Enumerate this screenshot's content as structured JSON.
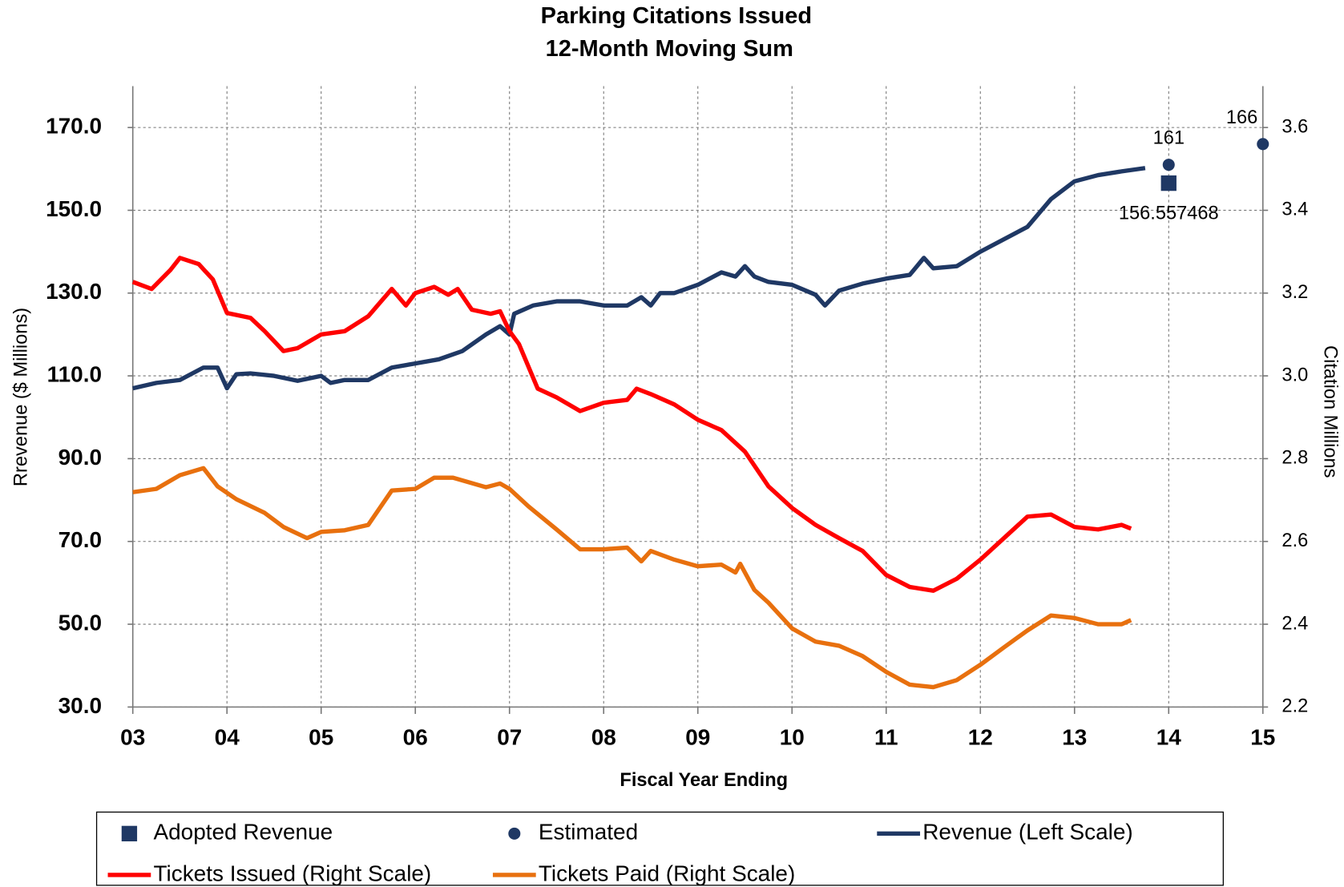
{
  "chart_data": {
    "type": "line",
    "title": "Parking Citations Issued",
    "subtitle": "12-Month Moving Sum",
    "x_label": "Fiscal Year Ending",
    "y_label": "Rrevenue ($ Millions)",
    "y2_label": "Citation Millions",
    "xlim": [
      3,
      15
    ],
    "xticks": [
      {
        "value": 3,
        "label": "03"
      },
      {
        "value": 4,
        "label": "04"
      },
      {
        "value": 5,
        "label": "05"
      },
      {
        "value": 6,
        "label": "06"
      },
      {
        "value": 7,
        "label": "07"
      },
      {
        "value": 8,
        "label": "08"
      },
      {
        "value": 9,
        "label": "09"
      },
      10,
      11,
      12,
      13,
      14,
      15
    ],
    "ylim": [
      30,
      180
    ],
    "yticks": [
      {
        "value": 30,
        "label": "30.0"
      },
      {
        "value": 50,
        "label": "50.0"
      },
      {
        "value": 70,
        "label": "70.0"
      },
      {
        "value": 90,
        "label": "90.0"
      },
      {
        "value": 110,
        "label": "110.0"
      },
      {
        "value": 130,
        "label": "130.0"
      },
      {
        "value": 150,
        "label": "150.0"
      },
      {
        "value": 170,
        "label": "170.0"
      }
    ],
    "y2lim": [
      2.2,
      3.7
    ],
    "y2ticks": [
      2.2,
      2.4,
      2.6,
      2.8,
      {
        "value": 3,
        "label": "3.0"
      },
      3.2,
      3.4,
      3.6
    ],
    "grid": true,
    "legend": "bottom",
    "series": [
      {
        "name": "Adopted Revenue",
        "style": "square",
        "color": "#1f3864",
        "labels": true,
        "x": [
          14
        ],
        "values": [
          156.557468
        ]
      },
      {
        "name": "Estimated",
        "style": "circle",
        "color": "#1f3864",
        "labels": true,
        "x": [
          14,
          15
        ],
        "values": [
          161,
          166
        ]
      },
      {
        "name": "Revenue (Left Scale)",
        "style": "line",
        "color": "#1f3864",
        "x": [
          3,
          3.25,
          3.5,
          3.75,
          3.9,
          4,
          4.1,
          4.25,
          4.5,
          4.75,
          5,
          5.1,
          5.25,
          5.5,
          5.75,
          6,
          6.25,
          6.5,
          6.75,
          6.9,
          7,
          7.05,
          7.25,
          7.5,
          7.75,
          8,
          8.25,
          8.4,
          8.5,
          8.6,
          8.75,
          9,
          9.25,
          9.4,
          9.5,
          9.6,
          9.75,
          10,
          10.25,
          10.35,
          10.5,
          10.75,
          11,
          11.25,
          11.4,
          11.5,
          11.75,
          12,
          12.25,
          12.5,
          12.75,
          13,
          13.25,
          13.5,
          13.75
        ],
        "values": [
          107,
          108.3,
          109,
          112,
          112,
          107,
          110.4,
          110.6,
          110,
          108.8,
          110,
          108.3,
          109,
          109,
          112,
          113,
          114,
          116,
          120,
          122,
          120,
          125,
          127,
          128,
          128,
          127,
          127,
          129,
          127,
          130,
          130,
          132,
          135,
          134,
          136.5,
          134,
          132.7,
          132,
          129.6,
          127,
          130.6,
          132.3,
          133.5,
          134.4,
          138.5,
          136,
          136.5,
          140,
          143,
          146,
          152.7,
          157,
          158.5,
          159.4,
          160.2
        ]
      },
      {
        "name": "Tickets Issued (Right Scale)",
        "style": "line",
        "color": "#ff0000",
        "axis": "y2",
        "x": [
          3,
          3.2,
          3.4,
          3.5,
          3.7,
          3.85,
          4,
          4.25,
          4.4,
          4.6,
          4.75,
          5,
          5.25,
          5.5,
          5.75,
          5.9,
          6,
          6.2,
          6.35,
          6.45,
          6.6,
          6.8,
          6.9,
          7,
          7.1,
          7.3,
          7.5,
          7.75,
          8,
          8.25,
          8.35,
          8.5,
          8.75,
          9,
          9.25,
          9.5,
          9.75,
          10,
          10.25,
          10.5,
          10.75,
          11,
          11.25,
          11.5,
          11.75,
          12,
          12.25,
          12.5,
          12.75,
          13,
          13.25,
          13.5,
          13.6
        ],
        "values": [
          3.227,
          3.21,
          3.256,
          3.285,
          3.27,
          3.233,
          3.152,
          3.14,
          3.108,
          3.06,
          3.067,
          3.1,
          3.108,
          3.144,
          3.21,
          3.17,
          3.2,
          3.215,
          3.196,
          3.21,
          3.16,
          3.15,
          3.156,
          3.108,
          3.077,
          2.969,
          2.948,
          2.915,
          2.935,
          2.942,
          2.969,
          2.956,
          2.931,
          2.894,
          2.869,
          2.817,
          2.733,
          2.681,
          2.64,
          2.608,
          2.577,
          2.519,
          2.49,
          2.481,
          2.51,
          2.556,
          2.608,
          2.66,
          2.665,
          2.635,
          2.629,
          2.64,
          2.631
        ]
      },
      {
        "name": "Tickets Paid (Right Scale)",
        "style": "line",
        "color": "#e8700e",
        "axis": "y2",
        "x": [
          3,
          3.25,
          3.5,
          3.75,
          3.9,
          4.1,
          4.4,
          4.6,
          4.85,
          5,
          5.25,
          5.5,
          5.75,
          6,
          6.2,
          6.4,
          6.75,
          6.9,
          7,
          7.2,
          7.5,
          7.75,
          8,
          8.25,
          8.4,
          8.5,
          8.75,
          9,
          9.25,
          9.4,
          9.45,
          9.6,
          9.75,
          10,
          10.25,
          10.5,
          10.75,
          11,
          11.25,
          11.5,
          11.75,
          12,
          12.25,
          12.5,
          12.75,
          13,
          13.25,
          13.5,
          13.6
        ],
        "values": [
          2.719,
          2.727,
          2.76,
          2.777,
          2.733,
          2.702,
          2.669,
          2.635,
          2.608,
          2.623,
          2.627,
          2.64,
          2.723,
          2.727,
          2.754,
          2.754,
          2.731,
          2.74,
          2.727,
          2.685,
          2.629,
          2.581,
          2.581,
          2.585,
          2.552,
          2.577,
          2.556,
          2.54,
          2.544,
          2.525,
          2.546,
          2.483,
          2.452,
          2.39,
          2.358,
          2.348,
          2.323,
          2.285,
          2.254,
          2.248,
          2.265,
          2.302,
          2.344,
          2.385,
          2.421,
          2.415,
          2.4,
          2.4,
          2.41
        ]
      }
    ]
  }
}
